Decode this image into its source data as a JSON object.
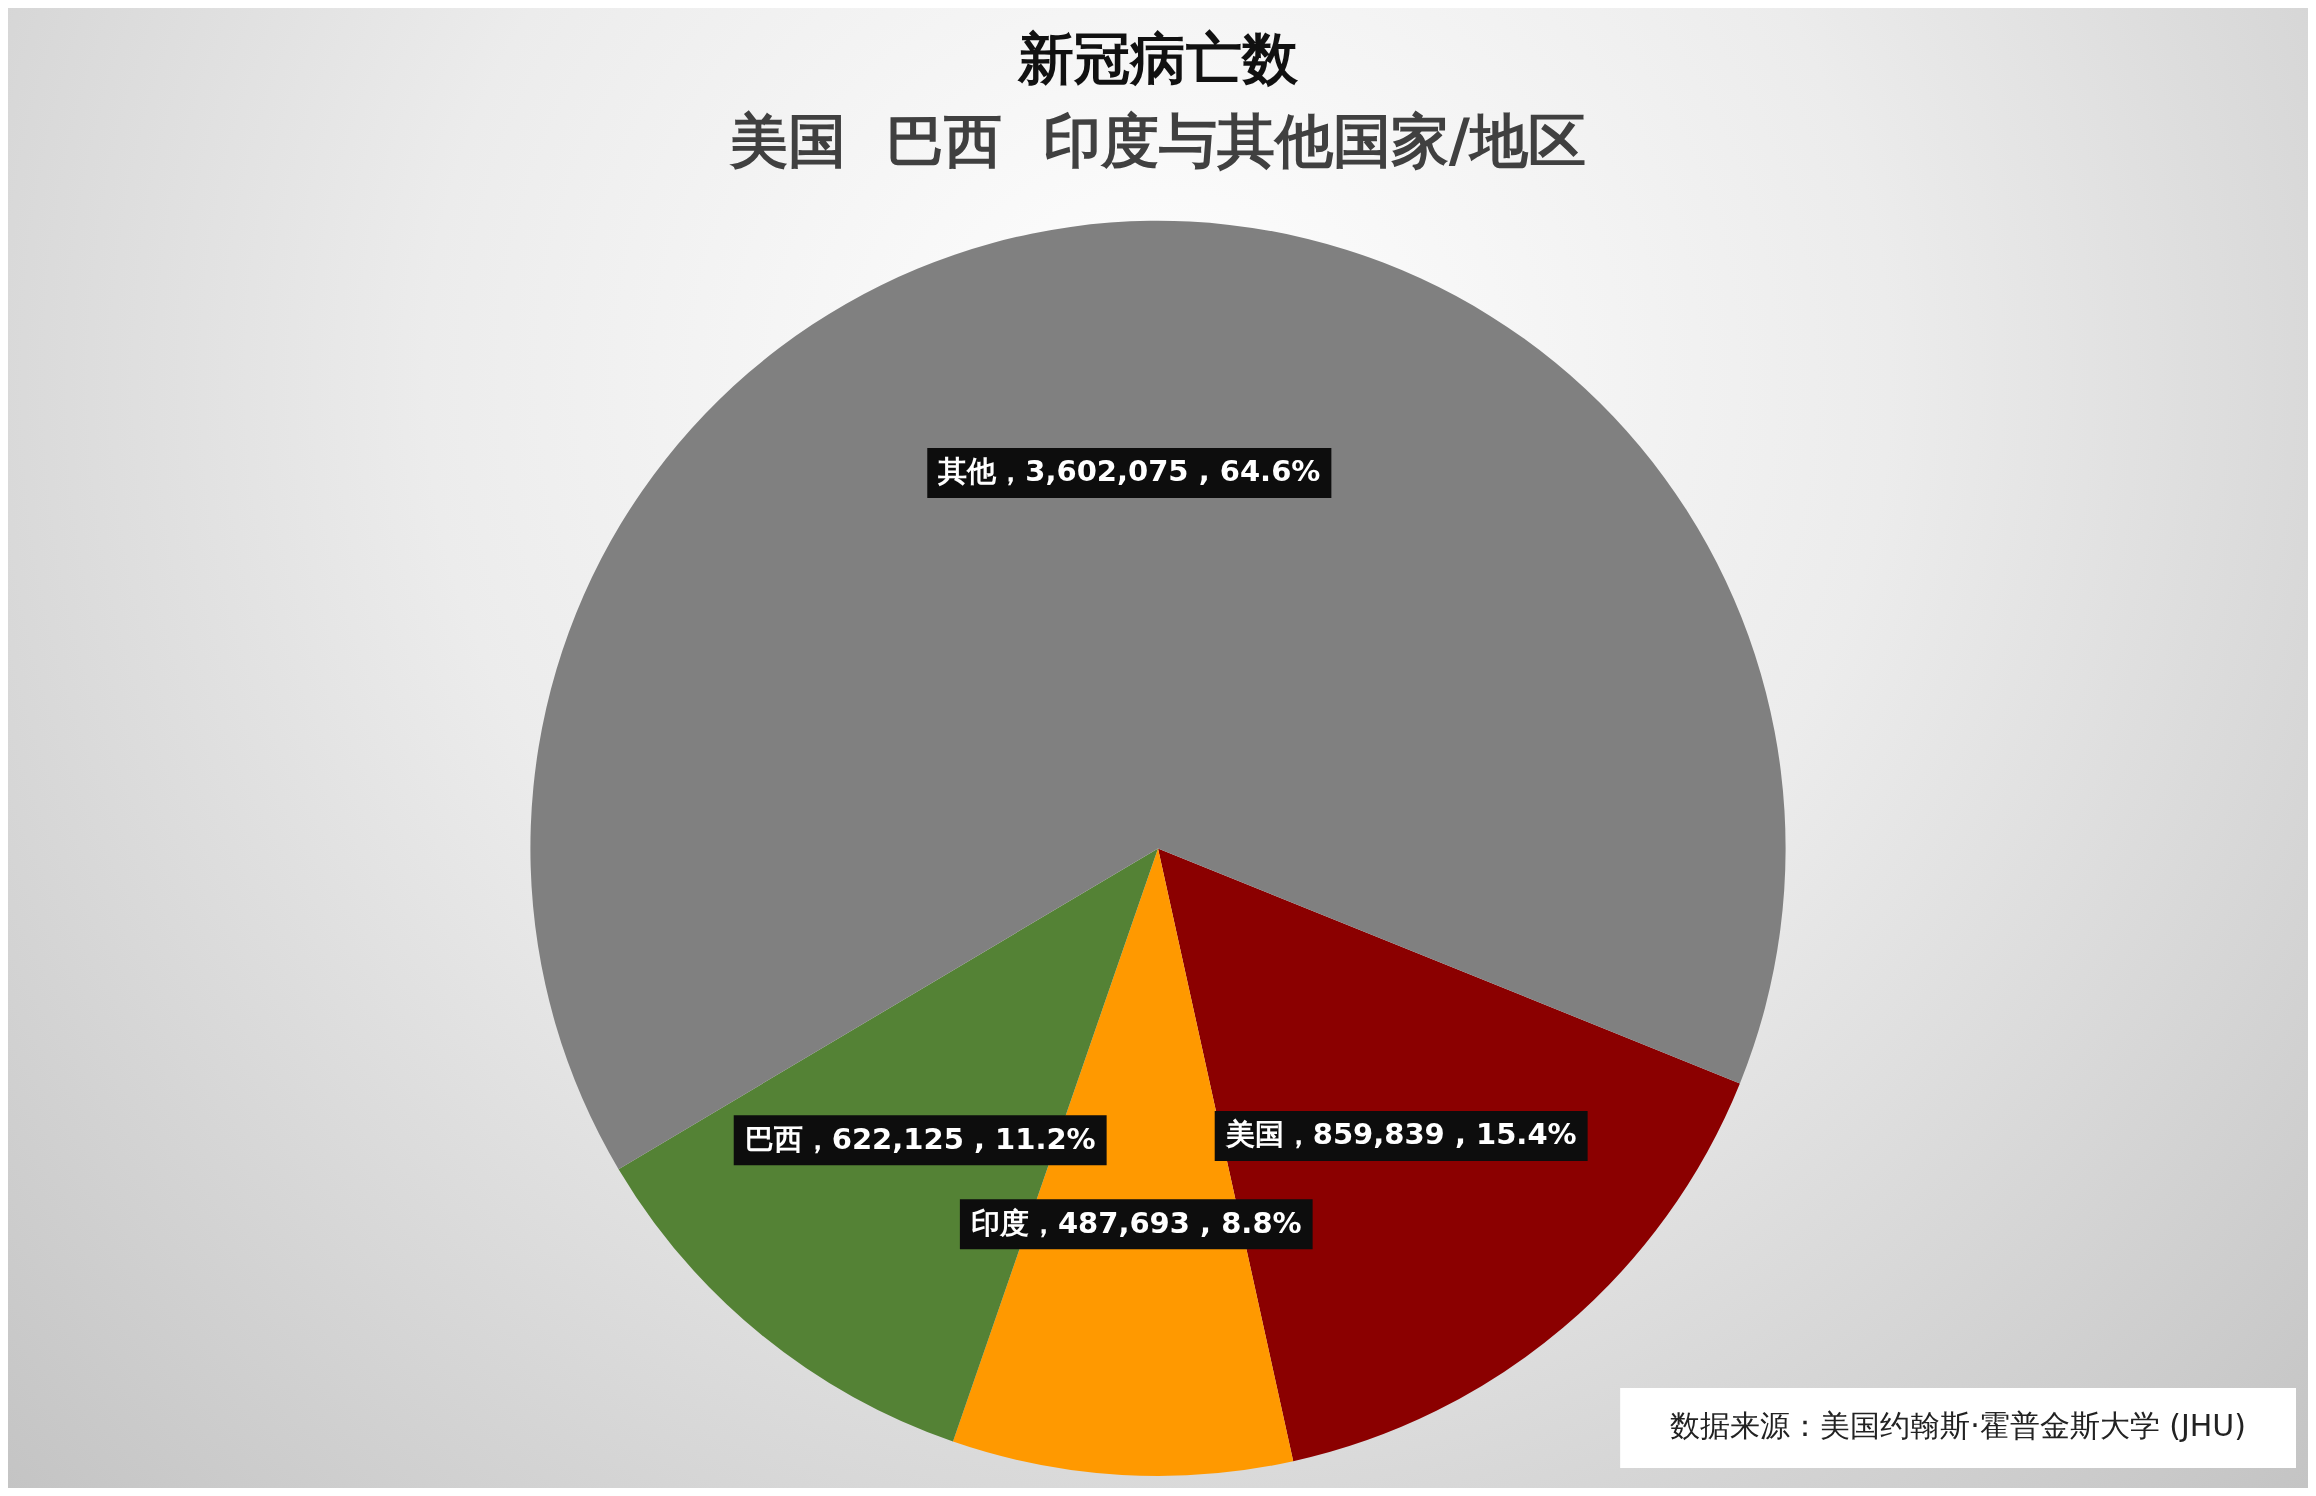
{
  "chart_data": {
    "type": "pie",
    "title": "新冠病亡数",
    "subtitle": "美国  巴西  印度与其他国家/地区",
    "categories": [
      "美国",
      "印度",
      "巴西",
      "其他"
    ],
    "values": [
      859839,
      487693,
      622125,
      3602075
    ],
    "colors": [
      "#8b0000",
      "#ff9900",
      "#548235",
      "#808080"
    ],
    "value_labels": [
      "，859,839 , 15.4%",
      "，487,693 , 8.8%",
      "，622,125 , 11.2%",
      "，3,602,075 , 64.6%"
    ],
    "annotations": [
      "数据来源：美国约翰斯·霍普金斯大学 (JHU)"
    ]
  }
}
